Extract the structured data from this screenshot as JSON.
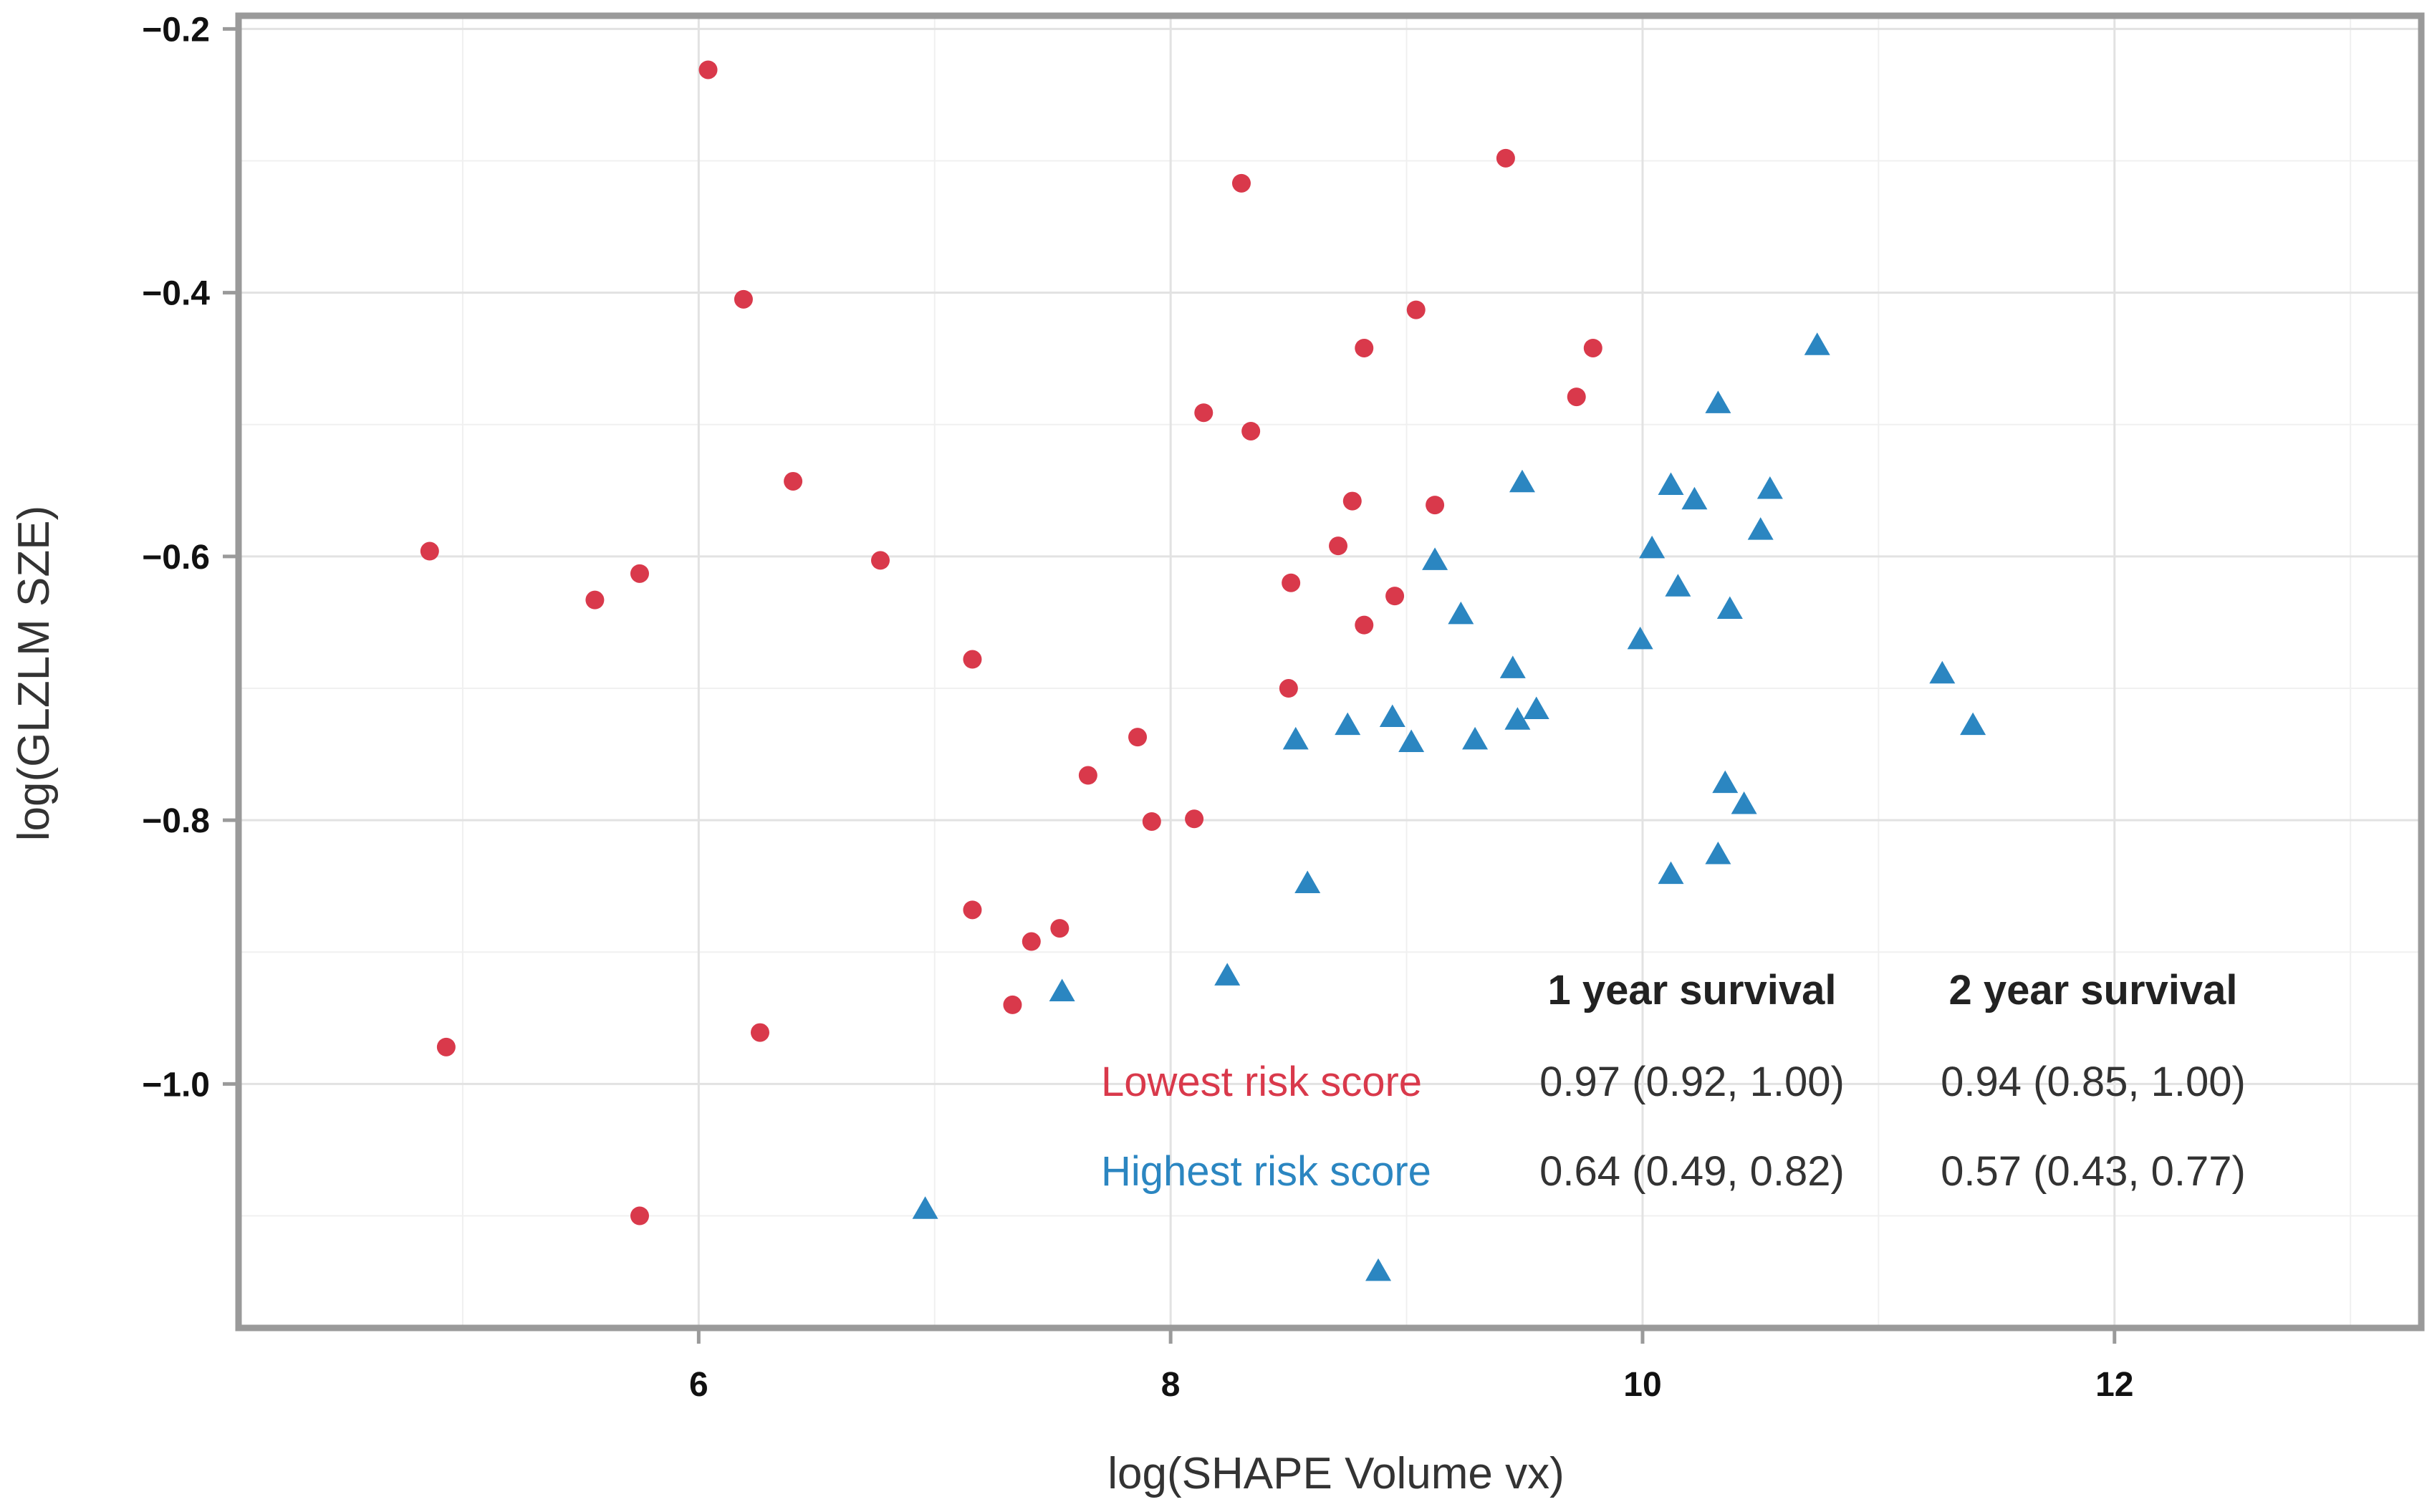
{
  "chart_data": {
    "type": "scatter",
    "title": "",
    "xlabel": "log(SHAPE Volume vx)",
    "ylabel": "log(GLZLM SZE)",
    "xlim": [
      4.05,
      13.3
    ],
    "ylim": [
      -1.185,
      -0.19
    ],
    "xticks": [
      6,
      8,
      10,
      12
    ],
    "xtick_labels": [
      "6",
      "8",
      "10",
      "12"
    ],
    "yticks": [
      -0.2,
      -0.4,
      -0.6,
      -0.8,
      -1.0
    ],
    "ytick_labels": [
      "−0.2",
      "−0.4",
      "−0.6",
      "−0.8",
      "−1.0"
    ],
    "x_minor_gridlines": [
      5,
      7,
      9,
      11,
      13
    ],
    "y_minor_gridlines": [
      -0.3,
      -0.5,
      -0.7,
      -0.9,
      -1.1
    ],
    "grid": true,
    "series": [
      {
        "name": "Lowest risk score",
        "color": "#d9394b",
        "marker": "circle",
        "points": [
          {
            "x": 4.86,
            "y": -0.596
          },
          {
            "x": 4.93,
            "y": -0.972
          },
          {
            "x": 5.56,
            "y": -0.633
          },
          {
            "x": 5.75,
            "y": -0.613
          },
          {
            "x": 5.75,
            "y": -1.1
          },
          {
            "x": 6.04,
            "y": -0.231
          },
          {
            "x": 6.19,
            "y": -0.405
          },
          {
            "x": 6.26,
            "y": -0.961
          },
          {
            "x": 6.4,
            "y": -0.543
          },
          {
            "x": 6.77,
            "y": -0.603
          },
          {
            "x": 7.16,
            "y": -0.678
          },
          {
            "x": 7.16,
            "y": -0.868
          },
          {
            "x": 7.33,
            "y": -0.94
          },
          {
            "x": 7.41,
            "y": -0.892
          },
          {
            "x": 7.53,
            "y": -0.882
          },
          {
            "x": 7.65,
            "y": -0.766
          },
          {
            "x": 7.86,
            "y": -0.737
          },
          {
            "x": 7.92,
            "y": -0.801
          },
          {
            "x": 8.1,
            "y": -0.799
          },
          {
            "x": 8.14,
            "y": -0.491
          },
          {
            "x": 8.3,
            "y": -0.317
          },
          {
            "x": 8.34,
            "y": -0.505
          },
          {
            "x": 8.5,
            "y": -0.7
          },
          {
            "x": 8.51,
            "y": -0.62
          },
          {
            "x": 8.71,
            "y": -0.592
          },
          {
            "x": 8.77,
            "y": -0.558
          },
          {
            "x": 8.82,
            "y": -0.442
          },
          {
            "x": 8.82,
            "y": -0.652
          },
          {
            "x": 8.95,
            "y": -0.63
          },
          {
            "x": 9.04,
            "y": -0.413
          },
          {
            "x": 9.12,
            "y": -0.561
          },
          {
            "x": 9.42,
            "y": -0.298
          },
          {
            "x": 9.72,
            "y": -0.479
          },
          {
            "x": 9.79,
            "y": -0.442
          }
        ]
      },
      {
        "name": "Highest risk score",
        "color": "#2b86c1",
        "marker": "triangle",
        "points": [
          {
            "x": 6.96,
            "y": -1.095
          },
          {
            "x": 7.54,
            "y": -0.93
          },
          {
            "x": 8.24,
            "y": -0.918
          },
          {
            "x": 8.53,
            "y": -0.739
          },
          {
            "x": 8.58,
            "y": -0.848
          },
          {
            "x": 8.75,
            "y": -0.728
          },
          {
            "x": 8.88,
            "y": -1.142
          },
          {
            "x": 8.94,
            "y": -0.722
          },
          {
            "x": 9.02,
            "y": -0.741
          },
          {
            "x": 9.12,
            "y": -0.603
          },
          {
            "x": 9.23,
            "y": -0.644
          },
          {
            "x": 9.29,
            "y": -0.739
          },
          {
            "x": 9.45,
            "y": -0.685
          },
          {
            "x": 9.47,
            "y": -0.724
          },
          {
            "x": 9.49,
            "y": -0.544
          },
          {
            "x": 9.55,
            "y": -0.716
          },
          {
            "x": 9.99,
            "y": -0.663
          },
          {
            "x": 10.04,
            "y": -0.594
          },
          {
            "x": 10.12,
            "y": -0.546
          },
          {
            "x": 10.12,
            "y": -0.841
          },
          {
            "x": 10.15,
            "y": -0.623
          },
          {
            "x": 10.22,
            "y": -0.557
          },
          {
            "x": 10.32,
            "y": -0.484
          },
          {
            "x": 10.32,
            "y": -0.826
          },
          {
            "x": 10.35,
            "y": -0.772
          },
          {
            "x": 10.37,
            "y": -0.64
          },
          {
            "x": 10.43,
            "y": -0.788
          },
          {
            "x": 10.5,
            "y": -0.58
          },
          {
            "x": 10.54,
            "y": -0.549
          },
          {
            "x": 10.74,
            "y": -0.44
          },
          {
            "x": 11.27,
            "y": -0.689
          },
          {
            "x": 11.4,
            "y": -0.728
          }
        ]
      }
    ],
    "annotation_table": {
      "headers": [
        "1 year survival",
        "2 year survival"
      ],
      "rows": [
        {
          "label": "Lowest risk score",
          "color": "#d9394b",
          "values": [
            "0.97 (0.92, 1.00)",
            "0.94 (0.85, 1.00)"
          ]
        },
        {
          "label": "Highest risk score",
          "color": "#2b86c1",
          "values": [
            "0.64 (0.49, 0.82)",
            "0.57 (0.43, 0.77)"
          ]
        }
      ]
    }
  }
}
